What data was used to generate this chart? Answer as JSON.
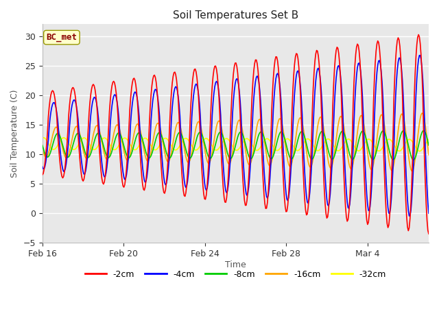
{
  "title": "Soil Temperatures Set B",
  "xlabel": "Time",
  "ylabel": "Soil Temperature (C)",
  "ylim": [
    -5,
    32
  ],
  "yticks": [
    -5,
    0,
    5,
    10,
    15,
    20,
    25,
    30
  ],
  "annotation_text": "BC_met",
  "annotation_color": "#8B0000",
  "annotation_bg": "#FFFFCC",
  "fig_facecolor": "#FFFFFF",
  "plot_bg_color": "#E8E8E8",
  "grid_color": "#FFFFFF",
  "line_colors": {
    "-2cm": "#FF0000",
    "-4cm": "#0000FF",
    "-8cm": "#00CC00",
    "-16cm": "#FFA500",
    "-32cm": "#FFFF00"
  },
  "line_width": 1.2,
  "n_days": 19,
  "xtick_labels": [
    "Feb 16",
    "Feb 20",
    "Feb 24",
    "Feb 28",
    "Mar 4"
  ],
  "xtick_positions": [
    0,
    4,
    8,
    12,
    16
  ],
  "figsize": [
    6.4,
    4.8
  ],
  "dpi": 100
}
